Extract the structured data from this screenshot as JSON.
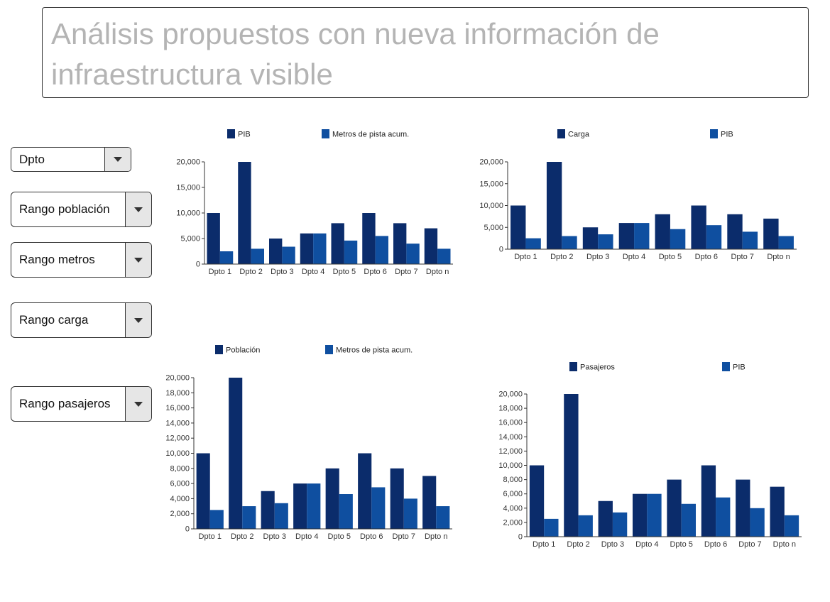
{
  "page": {
    "title": "Análisis propuestos con nueva información de infraestructura visible"
  },
  "filters": [
    {
      "label": "Dpto"
    },
    {
      "label": "Rango población"
    },
    {
      "label": "Rango metros"
    },
    {
      "label": "Rango carga"
    },
    {
      "label": "Rango pasajeros"
    }
  ],
  "colors": {
    "series_a": "#0b2c6b",
    "series_b": "#0f4fa0",
    "axis": "#333333",
    "title_text": "#b4b4b4"
  },
  "chart_data": [
    {
      "type": "bar",
      "title": "",
      "xlabel": "",
      "ylabel": "",
      "legend_position": "top",
      "grid": false,
      "categories": [
        "Dpto 1",
        "Dpto 2",
        "Dpto 3",
        "Dpto 4",
        "Dpto 5",
        "Dpto 6",
        "Dpto 7",
        "Dpto n"
      ],
      "series": [
        {
          "name": "PIB",
          "values": [
            10000,
            20000,
            5000,
            6000,
            8000,
            10000,
            8000,
            7000
          ]
        },
        {
          "name": "Metros de pista acum.",
          "values": [
            2500,
            3000,
            3400,
            6000,
            4600,
            5500,
            4000,
            3000
          ]
        }
      ],
      "ylim": [
        0,
        20000
      ],
      "yticks": [
        0,
        5000,
        10000,
        15000,
        20000
      ],
      "ytick_labels": [
        "0",
        "5,000",
        "10,000",
        "15,000",
        "20,000"
      ]
    },
    {
      "type": "bar",
      "title": "",
      "xlabel": "",
      "ylabel": "",
      "legend_position": "top",
      "grid": false,
      "categories": [
        "Dpto 1",
        "Dpto 2",
        "Dpto 3",
        "Dpto 4",
        "Dpto 5",
        "Dpto 6",
        "Dpto 7",
        "Dpto n"
      ],
      "series": [
        {
          "name": "Carga",
          "values": [
            10000,
            20000,
            5000,
            6000,
            8000,
            10000,
            8000,
            7000
          ]
        },
        {
          "name": "PIB",
          "values": [
            2500,
            3000,
            3400,
            6000,
            4600,
            5500,
            4000,
            3000
          ]
        }
      ],
      "ylim": [
        0,
        20000
      ],
      "yticks": [
        0,
        5000,
        10000,
        15000,
        20000
      ],
      "ytick_labels": [
        "0",
        "5,000",
        "10,000",
        "15,000",
        "20,000"
      ]
    },
    {
      "type": "bar",
      "title": "",
      "xlabel": "",
      "ylabel": "",
      "legend_position": "top",
      "grid": false,
      "categories": [
        "Dpto 1",
        "Dpto 2",
        "Dpto 3",
        "Dpto 4",
        "Dpto 5",
        "Dpto 6",
        "Dpto 7",
        "Dpto n"
      ],
      "series": [
        {
          "name": "Población",
          "values": [
            10000,
            20000,
            5000,
            6000,
            8000,
            10000,
            8000,
            7000
          ]
        },
        {
          "name": "Metros de pista acum.",
          "values": [
            2500,
            3000,
            3400,
            6000,
            4600,
            5500,
            4000,
            3000
          ]
        }
      ],
      "ylim": [
        0,
        20000
      ],
      "yticks": [
        0,
        2000,
        4000,
        6000,
        8000,
        10000,
        12000,
        14000,
        16000,
        18000,
        20000
      ],
      "ytick_labels": [
        "0",
        "2,000",
        "4,000",
        "6,000",
        "8,000",
        "10,000",
        "12,000",
        "14,000",
        "16,000",
        "18,000",
        "20,000"
      ]
    },
    {
      "type": "bar",
      "title": "",
      "xlabel": "",
      "ylabel": "",
      "legend_position": "top",
      "grid": false,
      "categories": [
        "Dpto 1",
        "Dpto 2",
        "Dpto 3",
        "Dpto 4",
        "Dpto 5",
        "Dpto 6",
        "Dpto 7",
        "Dpto n"
      ],
      "series": [
        {
          "name": "Pasajeros",
          "values": [
            10000,
            20000,
            5000,
            6000,
            8000,
            10000,
            8000,
            7000
          ]
        },
        {
          "name": "PIB",
          "values": [
            2500,
            3000,
            3400,
            6000,
            4600,
            5500,
            4000,
            3000
          ]
        }
      ],
      "ylim": [
        0,
        20000
      ],
      "yticks": [
        0,
        2000,
        4000,
        6000,
        8000,
        10000,
        12000,
        14000,
        16000,
        18000,
        20000
      ],
      "ytick_labels": [
        "0",
        "2,000",
        "4,000",
        "6,000",
        "8,000",
        "10,000",
        "12,000",
        "14,000",
        "16,000",
        "18,000",
        "20,000"
      ]
    }
  ]
}
